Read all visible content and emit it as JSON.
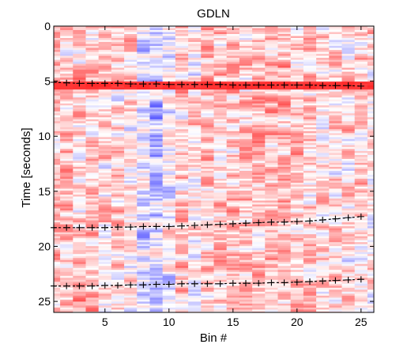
{
  "chart_data": {
    "type": "heatmap",
    "title": "GDLN",
    "xlabel": "Bin #",
    "ylabel": "Time [seconds]",
    "xlim": [
      1,
      26
    ],
    "ylim": [
      0,
      26
    ],
    "y_direction": "down",
    "x_ticks": [
      5,
      10,
      15,
      20,
      25
    ],
    "y_ticks": [
      0,
      5,
      10,
      15,
      20,
      25
    ],
    "colormap": {
      "low": "#2020ff",
      "mid": "#ffffff",
      "high": "#ff2020"
    },
    "grid": false,
    "overlay_series": [
      {
        "marker": "+",
        "points": [
          [
            1,
            5.1
          ],
          [
            2,
            5.15
          ],
          [
            3,
            5.2
          ],
          [
            4,
            5.2
          ],
          [
            5,
            5.2
          ],
          [
            6,
            5.2
          ],
          [
            7,
            5.25
          ],
          [
            8,
            5.25
          ],
          [
            9,
            5.25
          ],
          [
            10,
            5.3
          ],
          [
            11,
            5.3
          ],
          [
            12,
            5.3
          ],
          [
            13,
            5.3
          ],
          [
            14,
            5.3
          ],
          [
            15,
            5.35
          ],
          [
            16,
            5.35
          ],
          [
            17,
            5.35
          ],
          [
            18,
            5.35
          ],
          [
            19,
            5.35
          ],
          [
            20,
            5.35
          ],
          [
            21,
            5.35
          ],
          [
            22,
            5.4
          ],
          [
            23,
            5.4
          ],
          [
            24,
            5.4
          ],
          [
            25,
            5.45
          ]
        ]
      },
      {
        "marker": "+",
        "points": [
          [
            1,
            18.3
          ],
          [
            2,
            18.3
          ],
          [
            3,
            18.3
          ],
          [
            4,
            18.3
          ],
          [
            5,
            18.3
          ],
          [
            6,
            18.25
          ],
          [
            7,
            18.25
          ],
          [
            8,
            18.2
          ],
          [
            9,
            18.2
          ],
          [
            10,
            18.2
          ],
          [
            11,
            18.15
          ],
          [
            12,
            18.1
          ],
          [
            13,
            18.05
          ],
          [
            14,
            18.0
          ],
          [
            15,
            17.95
          ],
          [
            16,
            17.9
          ],
          [
            17,
            17.85
          ],
          [
            18,
            17.8
          ],
          [
            19,
            17.8
          ],
          [
            20,
            17.75
          ],
          [
            21,
            17.7
          ],
          [
            22,
            17.6
          ],
          [
            23,
            17.5
          ],
          [
            24,
            17.4
          ],
          [
            25,
            17.3
          ]
        ]
      },
      {
        "marker": "+",
        "points": [
          [
            1,
            23.6
          ],
          [
            2,
            23.6
          ],
          [
            3,
            23.6
          ],
          [
            4,
            23.6
          ],
          [
            5,
            23.55
          ],
          [
            6,
            23.55
          ],
          [
            7,
            23.5
          ],
          [
            8,
            23.5
          ],
          [
            9,
            23.45
          ],
          [
            10,
            23.45
          ],
          [
            11,
            23.4
          ],
          [
            12,
            23.4
          ],
          [
            13,
            23.4
          ],
          [
            14,
            23.4
          ],
          [
            15,
            23.35
          ],
          [
            16,
            23.35
          ],
          [
            17,
            23.35
          ],
          [
            18,
            23.3
          ],
          [
            19,
            23.3
          ],
          [
            20,
            23.25
          ],
          [
            21,
            23.2
          ],
          [
            22,
            23.15
          ],
          [
            23,
            23.1
          ],
          [
            24,
            23.05
          ],
          [
            25,
            23.0
          ]
        ]
      }
    ]
  }
}
